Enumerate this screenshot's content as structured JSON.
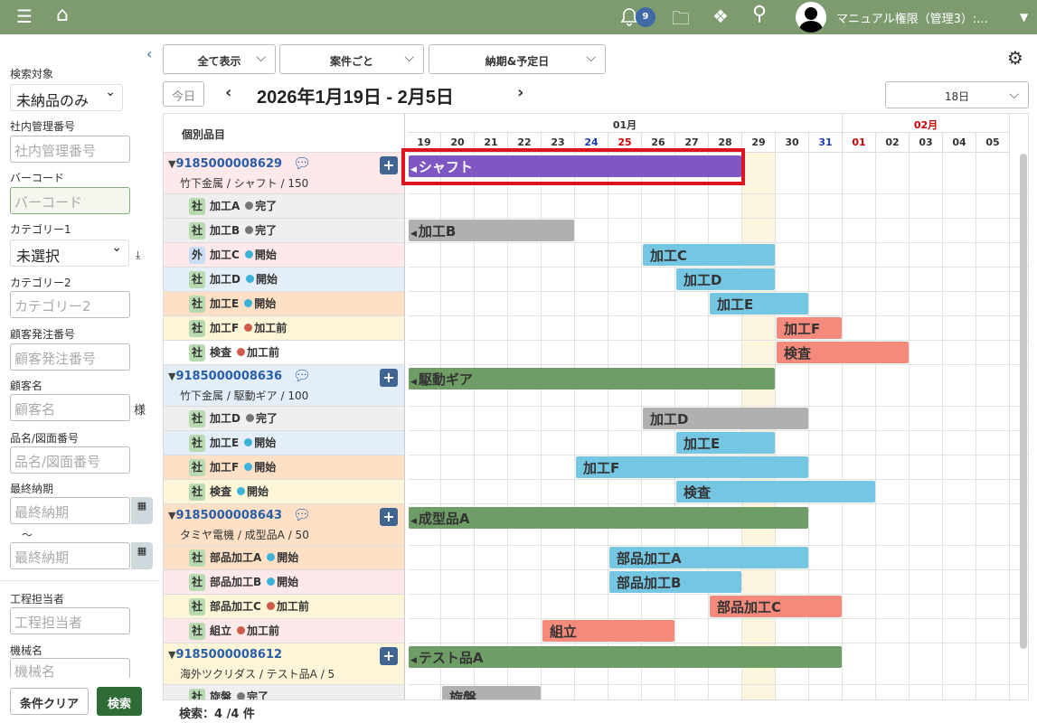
{
  "header": {
    "menu_icon": "menu-icon",
    "home_icon": "home-icon",
    "notification_count": "9",
    "user_name": "マニュアル権限（管理3）:...",
    "bg": "#7d9b6f"
  },
  "sidebar": {
    "search_target_label": "検索対象",
    "search_target_value": "未納品のみ",
    "internal_no_label": "社内管理番号",
    "internal_no_placeholder": "社内管理番号",
    "barcode_label": "バーコード",
    "barcode_placeholder": "バーコード",
    "category1_label": "カテゴリー1",
    "category1_value": "未選択",
    "category2_label": "カテゴリー2",
    "category2_placeholder": "カテゴリー2",
    "customer_order_label": "顧客発注番号",
    "customer_order_placeholder": "顧客発注番号",
    "customer_label": "顧客名",
    "customer_placeholder": "顧客名",
    "customer_suffix": "様",
    "part_label": "品名/図面番号",
    "part_placeholder": "品名/図面番号",
    "due_label": "最終納期",
    "due_from_placeholder": "最終納期",
    "due_sep": "～",
    "due_to_placeholder": "最終納期",
    "worker_label": "工程担当者",
    "worker_placeholder": "工程担当者",
    "machine_label": "機械名",
    "machine_placeholder": "機械名",
    "clear_button": "条件クリア",
    "search_button": "検索"
  },
  "toolbar": {
    "filter1": "全て表示",
    "filter2": "案件ごと",
    "filter3": "納期&予定日",
    "today_button": "今日",
    "date_range": "2026年1月19日 - 2月5日",
    "span_select": "18日"
  },
  "gantt": {
    "left_header": "個別品目",
    "months": [
      {
        "label": "01月",
        "days": 13,
        "color": "#333"
      },
      {
        "label": "02月",
        "days": 5,
        "color": "#c00"
      }
    ],
    "days": [
      {
        "d": "19"
      },
      {
        "d": "20"
      },
      {
        "d": "21"
      },
      {
        "d": "22"
      },
      {
        "d": "23"
      },
      {
        "d": "24",
        "c": "#1a3fb0"
      },
      {
        "d": "25",
        "c": "#c00"
      },
      {
        "d": "26"
      },
      {
        "d": "27"
      },
      {
        "d": "28"
      },
      {
        "d": "29"
      },
      {
        "d": "30"
      },
      {
        "d": "31",
        "c": "#1a3fb0"
      },
      {
        "d": "01",
        "c": "#c00"
      },
      {
        "d": "02"
      },
      {
        "d": "03"
      },
      {
        "d": "04"
      },
      {
        "d": "05"
      }
    ],
    "today_index": 10,
    "status_colors": {
      "完了": "#777777",
      "開始": "#3bb3d9",
      "加工前": "#cf5b4a"
    },
    "bar_colors": {
      "purple": "#7e57c2",
      "green": "#6e9e65",
      "gray": "#b0b0b0",
      "blue": "#74c6e2",
      "salmon": "#f48a7c"
    },
    "rows": [
      {
        "type": "parent",
        "id": "9185000008629",
        "sub": "竹下金属 / シャフト / 150",
        "bg": "#fde8ea",
        "comment": true,
        "bar": {
          "label": "シャフト",
          "start": 0,
          "days": 10,
          "color": "purple",
          "arrow": true,
          "selected": true
        }
      },
      {
        "type": "child",
        "tag": "社",
        "name": "加工A",
        "status": "完了",
        "bg": "#efefef"
      },
      {
        "type": "child",
        "tag": "社",
        "name": "加工B",
        "status": "完了",
        "bg": "#efefef",
        "bar": {
          "label": "加工B",
          "start": 0,
          "days": 5,
          "color": "gray",
          "arrow": true
        }
      },
      {
        "type": "child",
        "tag": "外",
        "name": "加工C",
        "status": "開始",
        "bg": "#fde8ea",
        "bar": {
          "label": "加工C",
          "start": 7,
          "days": 4,
          "color": "blue"
        }
      },
      {
        "type": "child",
        "tag": "社",
        "name": "加工D",
        "status": "開始",
        "bg": "#e3eef9",
        "bar": {
          "label": "加工D",
          "start": 8,
          "days": 3,
          "color": "blue"
        }
      },
      {
        "type": "child",
        "tag": "社",
        "name": "加工E",
        "status": "開始",
        "bg": "#fde0c5",
        "bar": {
          "label": "加工E",
          "start": 9,
          "days": 3,
          "color": "blue"
        }
      },
      {
        "type": "child",
        "tag": "社",
        "name": "加工F",
        "status": "加工前",
        "bg": "#fdf5d8",
        "bar": {
          "label": "加工F",
          "start": 11,
          "days": 2,
          "color": "salmon"
        }
      },
      {
        "type": "child",
        "tag": "社",
        "name": "検査",
        "status": "加工前",
        "bg": "#ffffff",
        "bar": {
          "label": "検査",
          "start": 11,
          "days": 4,
          "color": "salmon"
        }
      },
      {
        "type": "parent",
        "id": "9185000008636",
        "sub": "竹下金属 / 駆動ギア / 100",
        "bg": "#e3eef9",
        "comment": true,
        "bar": {
          "label": "駆動ギア",
          "start": 0,
          "days": 11,
          "color": "green",
          "arrow": true
        }
      },
      {
        "type": "child",
        "tag": "社",
        "name": "加工D",
        "status": "完了",
        "bg": "#efefef",
        "bar": {
          "label": "加工D",
          "start": 7,
          "days": 5,
          "color": "gray"
        }
      },
      {
        "type": "child",
        "tag": "社",
        "name": "加工E",
        "status": "開始",
        "bg": "#e3eef9",
        "bar": {
          "label": "加工E",
          "start": 8,
          "days": 3,
          "color": "blue"
        }
      },
      {
        "type": "child",
        "tag": "社",
        "name": "加工F",
        "status": "開始",
        "bg": "#fde0c5",
        "bar": {
          "label": "加工F",
          "start": 5,
          "days": 7,
          "color": "blue"
        }
      },
      {
        "type": "child",
        "tag": "社",
        "name": "検査",
        "status": "開始",
        "bg": "#fdf5d8",
        "bar": {
          "label": "検査",
          "start": 8,
          "days": 6,
          "color": "blue"
        }
      },
      {
        "type": "parent",
        "id": "9185000008643",
        "sub": "タミヤ電機 / 成型品A / 50",
        "bg": "#fde0c5",
        "comment": true,
        "bar": {
          "label": "成型品A",
          "start": 0,
          "days": 12,
          "color": "green",
          "arrow": true
        }
      },
      {
        "type": "child",
        "tag": "社",
        "name": "部品加工A",
        "status": "開始",
        "bg": "#fde0c5",
        "bar": {
          "label": "部品加工A",
          "start": 6,
          "days": 6,
          "color": "blue"
        }
      },
      {
        "type": "child",
        "tag": "社",
        "name": "部品加工B",
        "status": "開始",
        "bg": "#fde8ea",
        "bar": {
          "label": "部品加工B",
          "start": 6,
          "days": 4,
          "color": "blue"
        }
      },
      {
        "type": "child",
        "tag": "社",
        "name": "部品加工C",
        "status": "加工前",
        "bg": "#fdf5d8",
        "bar": {
          "label": "部品加工C",
          "start": 9,
          "days": 4,
          "color": "salmon"
        }
      },
      {
        "type": "child",
        "tag": "社",
        "name": "組立",
        "status": "加工前",
        "bg": "#fde8ea",
        "bar": {
          "label": "組立",
          "start": 4,
          "days": 4,
          "color": "salmon"
        }
      },
      {
        "type": "parent",
        "id": "9185000008612",
        "sub": "海外ツクリダス / テスト品A / 5",
        "bg": "#fdf5d8",
        "comment": false,
        "bar": {
          "label": "テスト品A",
          "start": 0,
          "days": 13,
          "color": "green",
          "arrow": true
        }
      },
      {
        "type": "child",
        "tag": "社",
        "name": "旋盤",
        "status": "完了",
        "bg": "#efefef",
        "bar": {
          "label": "旋盤",
          "start": 1,
          "days": 3,
          "color": "gray"
        }
      }
    ]
  },
  "footer": {
    "count": "検索：4 /4 件"
  }
}
